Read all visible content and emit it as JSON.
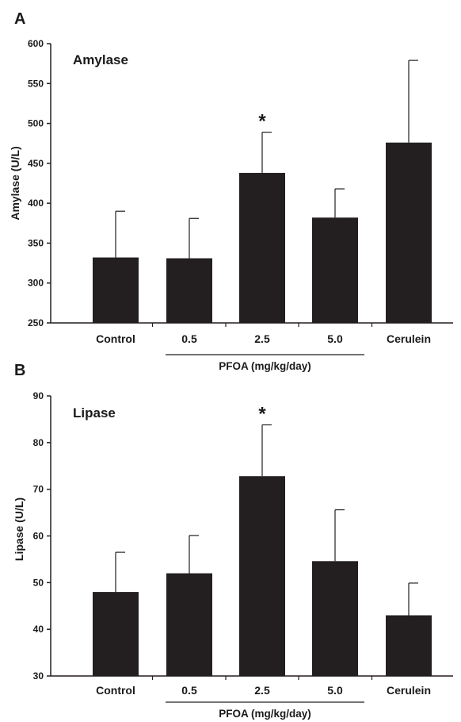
{
  "chart_data": [
    {
      "type": "bar",
      "panel": "A",
      "title": "Amylase",
      "ylabel": "Amylase (U/L)",
      "xlabel": "",
      "ylim": [
        250,
        600
      ],
      "yticks": [
        250,
        300,
        350,
        400,
        450,
        500,
        550,
        600
      ],
      "categories": [
        "Control",
        "0.5",
        "2.5",
        "5.0",
        "Cerulein"
      ],
      "values": [
        332,
        331,
        438,
        382,
        476
      ],
      "errors": [
        58,
        50,
        51,
        36,
        103
      ],
      "significant": [
        "",
        "",
        "*",
        "",
        ""
      ],
      "group": {
        "label": "PFOA (mg/kg/day)",
        "categories": [
          "0.5",
          "2.5",
          "5.0"
        ]
      },
      "grid": false,
      "colors": {
        "bar": "#231f20",
        "axis": "#231f20"
      }
    },
    {
      "type": "bar",
      "panel": "B",
      "title": "Lipase",
      "ylabel": "Lipase (U/L)",
      "xlabel": "",
      "ylim": [
        30,
        90
      ],
      "yticks": [
        30,
        40,
        50,
        60,
        70,
        80,
        90
      ],
      "categories": [
        "Control",
        "0.5",
        "2.5",
        "5.0",
        "Cerulein"
      ],
      "values": [
        48,
        52,
        72.8,
        54.6,
        43
      ],
      "errors": [
        8.5,
        8.1,
        11,
        11,
        6.9
      ],
      "significant": [
        "",
        "",
        "*",
        "",
        ""
      ],
      "group": {
        "label": "PFOA (mg/kg/day)",
        "categories": [
          "0.5",
          "2.5",
          "5.0"
        ]
      },
      "grid": false,
      "colors": {
        "bar": "#231f20",
        "axis": "#231f20"
      }
    }
  ]
}
